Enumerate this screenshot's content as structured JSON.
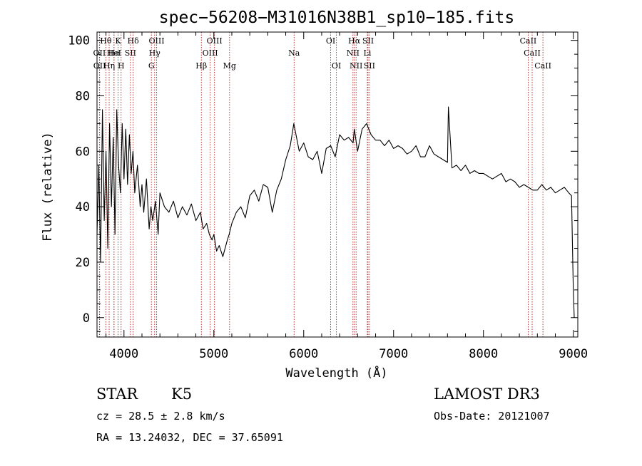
{
  "chart_data": {
    "type": "line",
    "title": "spec−56208−M31016N38B1_sp10−185.fits",
    "xlabel": "Wavelength (Å)",
    "ylabel": "Flux (relative)",
    "xlim": [
      3700,
      9050
    ],
    "ylim": [
      -7,
      103
    ],
    "xticks": [
      4000,
      5000,
      6000,
      7000,
      8000,
      9000
    ],
    "xtick_labels": [
      "4000",
      "5000",
      "6000",
      "7000",
      "8000",
      "9000"
    ],
    "yticks": [
      0,
      20,
      40,
      60,
      80,
      100
    ],
    "ytick_labels": [
      "0",
      "20",
      "40",
      "60",
      "80",
      "100"
    ],
    "grid": false,
    "legend": "none",
    "series": [
      {
        "name": "flux",
        "x": [
          3700,
          3720,
          3740,
          3760,
          3780,
          3800,
          3820,
          3840,
          3860,
          3880,
          3900,
          3920,
          3940,
          3960,
          3980,
          4000,
          4020,
          4040,
          4060,
          4080,
          4100,
          4120,
          4150,
          4180,
          4200,
          4220,
          4250,
          4280,
          4300,
          4320,
          4350,
          4380,
          4400,
          4450,
          4500,
          4550,
          4600,
          4650,
          4700,
          4750,
          4800,
          4850,
          4880,
          4900,
          4920,
          4950,
          4980,
          5000,
          5030,
          5060,
          5100,
          5150,
          5170,
          5200,
          5250,
          5300,
          5350,
          5400,
          5450,
          5500,
          5550,
          5600,
          5650,
          5700,
          5750,
          5800,
          5850,
          5890,
          5920,
          5950,
          6000,
          6050,
          6100,
          6150,
          6200,
          6250,
          6300,
          6350,
          6400,
          6450,
          6500,
          6550,
          6563,
          6600,
          6650,
          6700,
          6750,
          6800,
          6850,
          6900,
          6950,
          7000,
          7050,
          7100,
          7150,
          7200,
          7250,
          7300,
          7350,
          7400,
          7450,
          7500,
          7550,
          7600,
          7610,
          7650,
          7700,
          7750,
          7800,
          7850,
          7900,
          7950,
          8000,
          8050,
          8100,
          8150,
          8200,
          8250,
          8300,
          8350,
          8400,
          8450,
          8500,
          8550,
          8600,
          8650,
          8700,
          8750,
          8800,
          8850,
          8900,
          8950,
          8980,
          9000,
          9010
        ],
        "y": [
          30,
          55,
          20,
          75,
          35,
          60,
          25,
          70,
          40,
          65,
          30,
          75,
          55,
          45,
          70,
          50,
          68,
          48,
          66,
          52,
          60,
          45,
          55,
          40,
          48,
          38,
          50,
          32,
          40,
          35,
          42,
          30,
          45,
          40,
          38,
          42,
          36,
          40,
          37,
          41,
          35,
          38,
          32,
          33,
          34,
          30,
          28,
          30,
          24,
          26,
          22,
          28,
          30,
          34,
          38,
          40,
          36,
          44,
          46,
          42,
          48,
          47,
          38,
          46,
          50,
          57,
          62,
          70,
          65,
          60,
          63,
          58,
          57,
          60,
          52,
          61,
          62,
          58,
          66,
          64,
          65,
          63,
          68,
          60,
          68,
          70,
          66,
          64,
          64,
          62,
          64,
          61,
          62,
          61,
          59,
          60,
          62,
          58,
          58,
          62,
          59,
          58,
          57,
          56,
          76,
          54,
          55,
          53,
          55,
          52,
          53,
          52,
          52,
          51,
          50,
          51,
          52,
          49,
          50,
          49,
          47,
          48,
          47,
          46,
          46,
          48,
          46,
          47,
          45,
          46,
          47,
          45,
          44,
          10,
          0
        ]
      }
    ],
    "line_markers": [
      {
        "label": "Hθ",
        "x": 3798,
        "row": 1
      },
      {
        "label": "OII",
        "x": 3727,
        "row": 2
      },
      {
        "label": "OII",
        "x": 3729,
        "row": 3
      },
      {
        "label": "He",
        "x": 3889,
        "row": 2
      },
      {
        "label": "Hη",
        "x": 3835,
        "row": 3
      },
      {
        "label": "HeI",
        "x": 3889,
        "row": 2
      },
      {
        "label": "H",
        "x": 3968,
        "row": 3
      },
      {
        "label": "K",
        "x": 3934,
        "row": 1
      },
      {
        "label": "Hδ",
        "x": 4102,
        "row": 1
      },
      {
        "label": "SII",
        "x": 4072,
        "row": 2
      },
      {
        "label": "OIII",
        "x": 4363,
        "row": 1
      },
      {
        "label": "Hγ",
        "x": 4341,
        "row": 2
      },
      {
        "label": "G",
        "x": 4305,
        "row": 3
      },
      {
        "label": "Hβ",
        "x": 4861,
        "row": 3
      },
      {
        "label": "OIII",
        "x": 5007,
        "row": 1
      },
      {
        "label": "OIII",
        "x": 4959,
        "row": 2
      },
      {
        "label": "Mg",
        "x": 5175,
        "row": 3
      },
      {
        "label": "Na",
        "x": 5893,
        "row": 2
      },
      {
        "label": "OI",
        "x": 6300,
        "row": 1
      },
      {
        "label": "OI",
        "x": 6364,
        "row": 3
      },
      {
        "label": "Hα",
        "x": 6563,
        "row": 1
      },
      {
        "label": "NII",
        "x": 6548,
        "row": 2
      },
      {
        "label": "NII",
        "x": 6583,
        "row": 3
      },
      {
        "label": "SII",
        "x": 6716,
        "row": 1
      },
      {
        "label": "Li",
        "x": 6708,
        "row": 2
      },
      {
        "label": "SII",
        "x": 6731,
        "row": 3
      },
      {
        "label": "CaII",
        "x": 8498,
        "row": 1
      },
      {
        "label": "CaII",
        "x": 8542,
        "row": 2
      },
      {
        "label": "CaII",
        "x": 8662,
        "row": 3
      }
    ]
  },
  "info": {
    "class_label": "STAR",
    "subclass": "K5",
    "survey": "LAMOST DR3",
    "redshift": "cz = 28.5 ± 2.8 km/s",
    "obs_date": "Obs-Date: 20121007",
    "coords": "RA =  13.24032, DEC =  37.65091"
  },
  "colors": {
    "axis": "#000000",
    "spectrum": "#000000",
    "marker_line": "#b22222"
  }
}
